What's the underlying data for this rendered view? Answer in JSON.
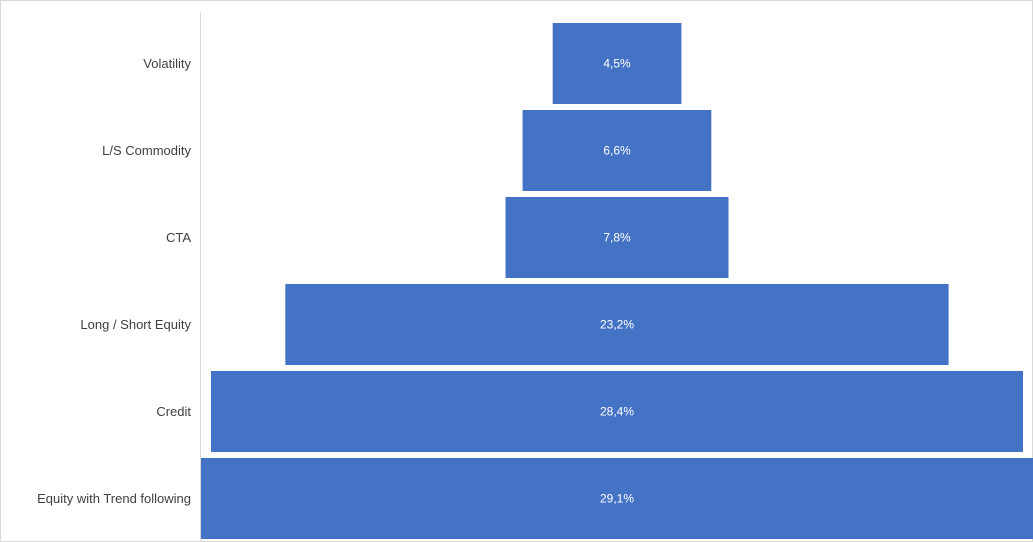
{
  "chart_data": {
    "type": "bar",
    "orientation": "horizontal-funnel",
    "categories": [
      "Volatility",
      "L/S Commodity",
      "CTA",
      "Long / Short Equity",
      "Credit",
      "Equity with Trend following"
    ],
    "values": [
      4.5,
      6.6,
      7.8,
      23.2,
      28.4,
      29.1
    ],
    "value_labels": [
      "4,5%",
      "6,6%",
      "7,8%",
      "23,2%",
      "28,4%",
      "29,1%"
    ],
    "title": "",
    "xlabel": "",
    "ylabel": "",
    "xlim": [
      0,
      29.1
    ],
    "grid": false,
    "legend": "none",
    "bar_color": "#4472C4",
    "label_color": "#404040",
    "value_label_color": "#ffffff",
    "axis_color": "#d9d9d9"
  }
}
